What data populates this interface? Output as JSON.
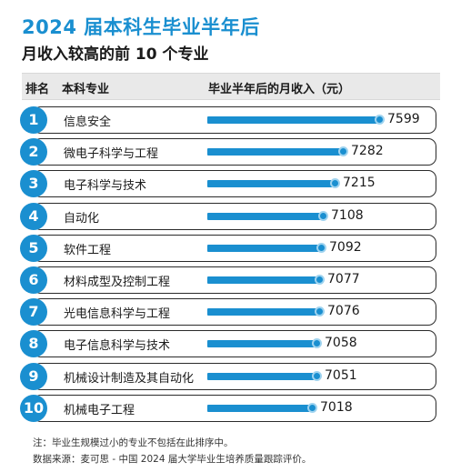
{
  "title": "2024 届本科生毕业半年后",
  "subtitle": "月收入较高的前 10 个专业",
  "header": {
    "rank": "排名",
    "major": "本科专业",
    "income": "毕业半年后的月收入（元）"
  },
  "colors": {
    "accent": "#1a8fd0",
    "cap_ring": "#9fd3ef",
    "header_bg": "#e9e9e9"
  },
  "chart_data": {
    "type": "bar",
    "title": "2024 届本科生毕业半年后",
    "subtitle": "月收入较高的前 10 个专业",
    "xlabel": "",
    "ylabel": "毕业半年后的月收入（元）",
    "ranks": [
      "1",
      "2",
      "3",
      "4",
      "5",
      "6",
      "7",
      "8",
      "9",
      "10"
    ],
    "categories": [
      "信息安全",
      "微电子科学与工程",
      "电子科学与技术",
      "自动化",
      "软件工程",
      "材料成型及控制工程",
      "光电信息科学与工程",
      "电子信息科学与技术",
      "机械设计制造及其自动化",
      "机械电子工程"
    ],
    "values": [
      7599,
      7282,
      7215,
      7108,
      7092,
      7077,
      7076,
      7058,
      7051,
      7018
    ]
  },
  "footer": {
    "note": "注：毕业生规模过小的专业不包括在此排序中。",
    "source": "数据来源：麦可思 - 中国 2024 届大学毕业生培养质量跟踪评价。"
  }
}
